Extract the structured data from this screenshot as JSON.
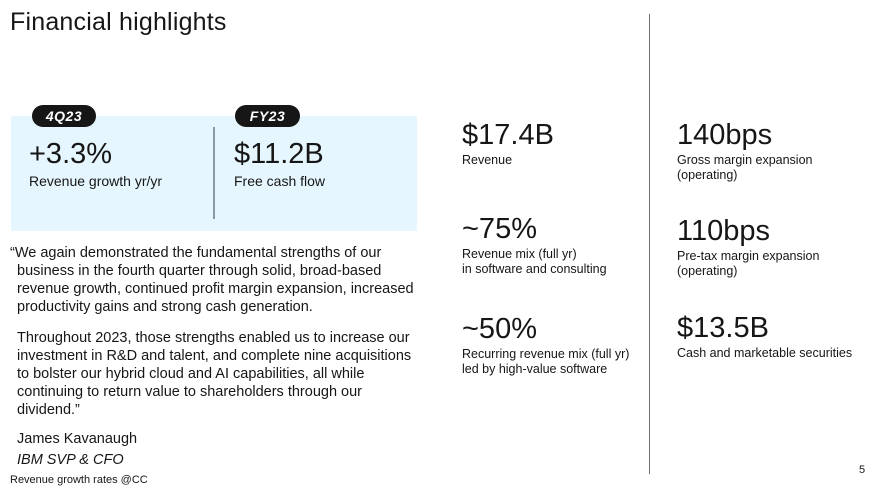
{
  "title": "Financial highlights",
  "kpis": [
    {
      "tag": "4Q23",
      "value": "+3.3%",
      "label": "Revenue growth yr/yr"
    },
    {
      "tag": "FY23",
      "value": "$11.2B",
      "label": "Free cash flow"
    }
  ],
  "quote": {
    "paragraph1": "“We again demonstrated the fundamental strengths of our business in the fourth quarter through solid, broad-based revenue growth, continued profit margin expansion, increased productivity gains and strong cash generation.",
    "paragraph2": "Throughout 2023, those strengths enabled us to increase our investment in R&D and talent, and complete nine acquisitions to bolster our hybrid cloud and AI capabilities, all while continuing to return value to shareholders through our dividend.”",
    "author_name": "James Kavanaugh",
    "author_title": "IBM SVP & CFO"
  },
  "footnote": "Revenue growth rates @CC",
  "metrics_left": [
    {
      "value": "$17.4B",
      "label_lines": [
        "Revenue"
      ]
    },
    {
      "value": "~75%",
      "label_lines": [
        "Revenue mix (full yr)",
        "in software and consulting"
      ]
    },
    {
      "value": "~50%",
      "label_lines": [
        "Recurring revenue mix (full yr)",
        "led by high-value software"
      ]
    }
  ],
  "metrics_right": [
    {
      "value": "140bps",
      "label_lines": [
        "Gross margin expansion",
        "(operating)"
      ]
    },
    {
      "value": "110bps",
      "label_lines": [
        "Pre-tax margin expansion",
        "(operating)"
      ]
    },
    {
      "value": "$13.5B",
      "label_lines": [
        "Cash and marketable securities"
      ]
    }
  ],
  "page_number": "5"
}
